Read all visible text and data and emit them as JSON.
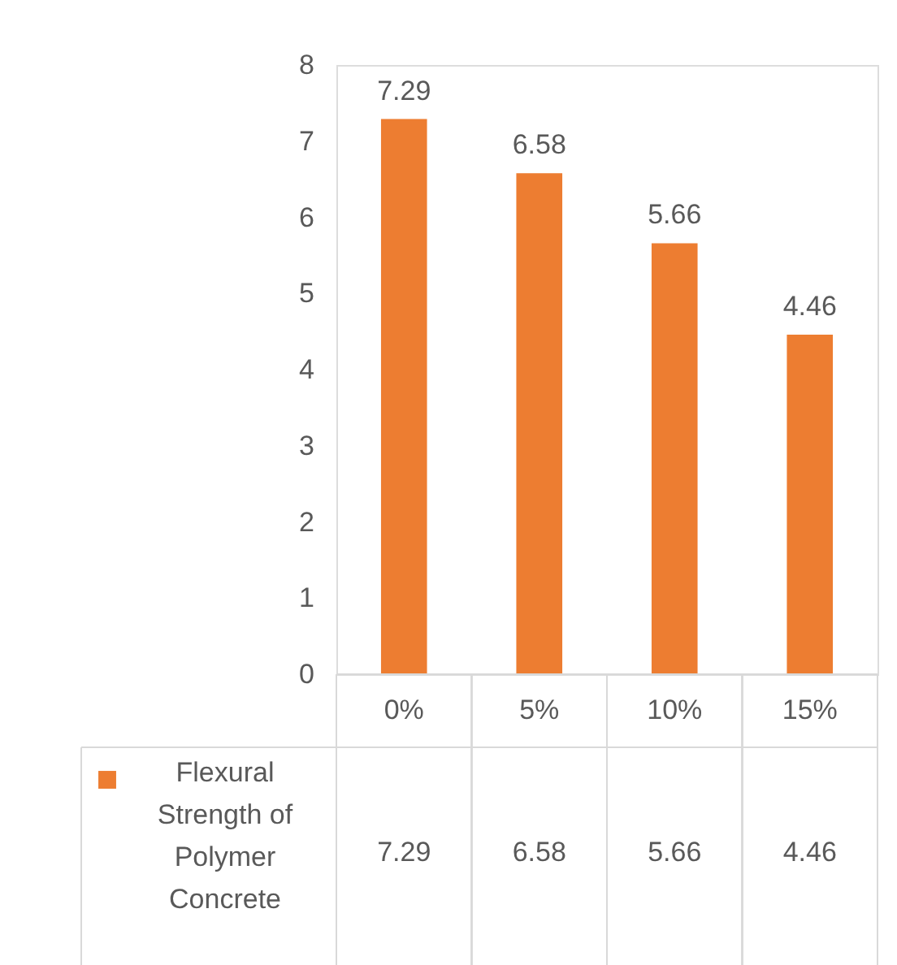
{
  "chart_data": {
    "type": "bar",
    "categories": [
      "0%",
      "5%",
      "10%",
      "15%"
    ],
    "series": [
      {
        "name": "Flexural Strength of Polymer Concrete",
        "color": "#ed7d31",
        "values": [
          7.29,
          6.58,
          5.66,
          4.46
        ],
        "value_labels": [
          "7.29",
          "6.58",
          "5.66",
          "4.46"
        ]
      }
    ],
    "ylim": [
      0,
      8
    ],
    "yticks": [
      0,
      1,
      2,
      3,
      4,
      5,
      6,
      7,
      8
    ],
    "annotations": [
      "7.29",
      "6.58",
      "5.66",
      "4.46"
    ],
    "legend": "bottom",
    "grid": false
  }
}
